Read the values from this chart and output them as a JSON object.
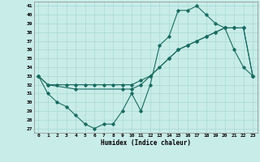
{
  "xlabel": "Humidex (Indice chaleur)",
  "bg_color": "#c8ece8",
  "grid_color": "#a8d8d4",
  "line_color": "#1a6b60",
  "xlim": [
    -0.5,
    23.5
  ],
  "ylim": [
    26.5,
    41.5
  ],
  "xticks": [
    0,
    1,
    2,
    3,
    4,
    5,
    6,
    7,
    8,
    9,
    10,
    11,
    12,
    13,
    14,
    15,
    16,
    17,
    18,
    19,
    20,
    21,
    22,
    23
  ],
  "yticks": [
    27,
    28,
    29,
    30,
    31,
    32,
    33,
    34,
    35,
    36,
    37,
    38,
    39,
    40,
    41
  ],
  "line1_x": [
    0,
    1,
    2,
    3,
    4,
    5,
    6,
    7,
    8,
    9,
    10,
    11,
    12,
    13,
    14,
    15,
    16,
    17,
    18,
    19,
    20,
    21,
    22,
    23
  ],
  "line1_y": [
    33,
    31,
    30,
    29.5,
    28.5,
    27.5,
    27,
    27.5,
    27.5,
    29,
    31,
    29,
    32,
    36.5,
    37.5,
    40.5,
    40.5,
    41,
    40,
    39,
    38.5,
    36,
    34,
    33
  ],
  "line2_x": [
    0,
    1,
    2,
    3,
    4,
    5,
    6,
    7,
    8,
    9,
    10,
    11,
    12,
    13,
    14,
    15,
    16,
    17,
    18,
    19,
    20,
    21,
    22,
    23
  ],
  "line2_y": [
    33,
    32,
    32,
    32,
    32,
    32,
    32,
    32,
    32,
    32,
    32,
    32.5,
    33,
    34,
    35,
    36,
    36.5,
    37,
    37.5,
    38,
    38.5,
    38.5,
    38.5,
    33
  ],
  "line3_x": [
    0,
    1,
    4,
    9,
    10,
    11,
    14,
    15,
    16,
    17,
    18,
    19,
    20,
    21,
    22,
    23
  ],
  "line3_y": [
    33,
    32,
    31.5,
    31.5,
    31.5,
    32,
    35,
    36,
    36.5,
    37,
    37.5,
    38,
    38.5,
    38.5,
    38.5,
    33
  ]
}
